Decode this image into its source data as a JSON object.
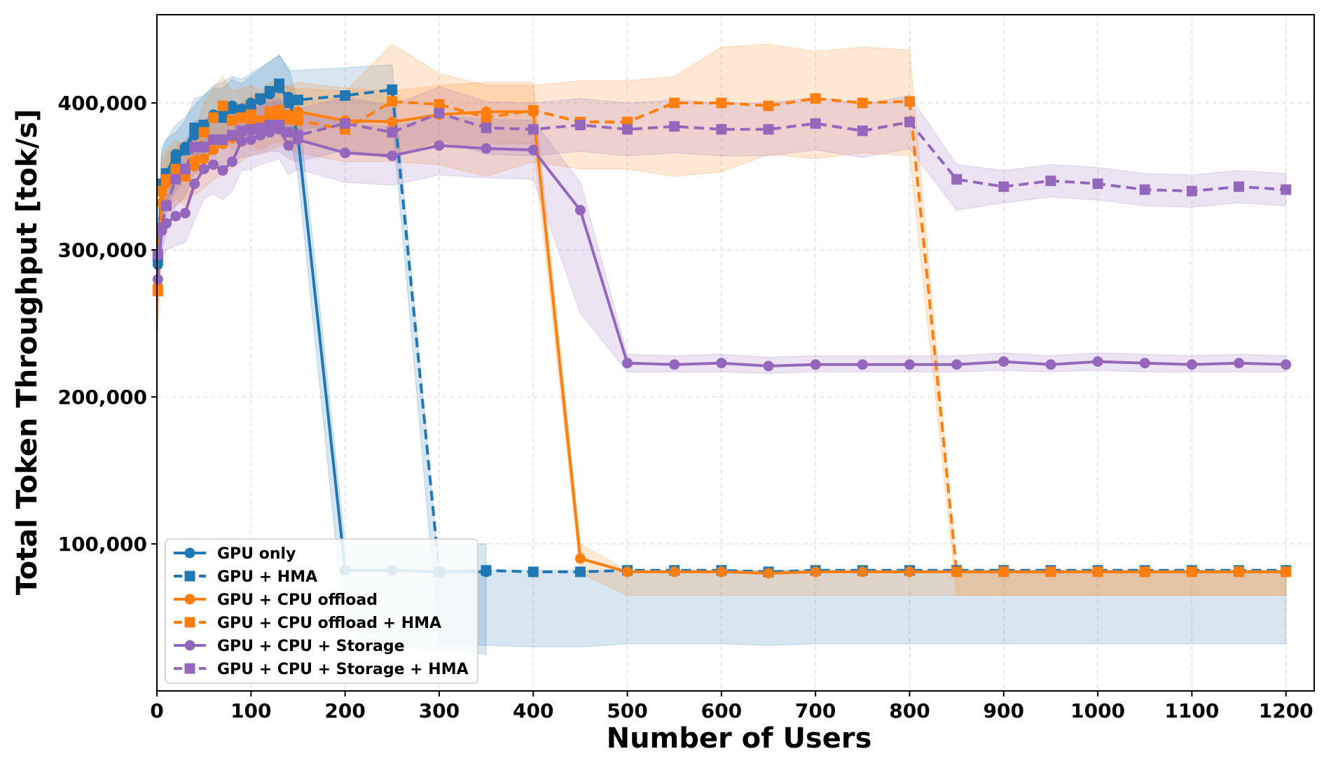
{
  "chart_data": {
    "type": "line",
    "title": "",
    "xlabel": "Number of Users",
    "ylabel": "Total Token Throughput [tok/s]",
    "xlim": [
      0,
      1230
    ],
    "ylim": [
      0,
      460000
    ],
    "x_ticks": [
      0,
      100,
      200,
      300,
      400,
      500,
      600,
      700,
      800,
      900,
      1000,
      1100,
      1200
    ],
    "x_tick_labels": [
      "0",
      "100",
      "200",
      "300",
      "400",
      "500",
      "600",
      "700",
      "800",
      "900",
      "1000",
      "1100",
      "1200"
    ],
    "y_ticks": [
      100000,
      200000,
      300000,
      400000
    ],
    "y_tick_labels": [
      "100,000",
      "200,000",
      "300,000",
      "400,000"
    ],
    "grid": true,
    "legend_position": "bottom-left",
    "series": [
      {
        "name": "GPU only",
        "color": "#1f77b4",
        "line_style": "solid",
        "marker": "circle",
        "x": [
          1,
          5,
          10,
          20,
          30,
          40,
          50,
          60,
          70,
          80,
          90,
          100,
          110,
          120,
          130,
          140,
          150,
          200,
          250,
          300,
          350
        ],
        "y": [
          290000,
          340000,
          352000,
          365000,
          370000,
          378000,
          385000,
          392000,
          394000,
          398000,
          396000,
          400000,
          402000,
          406000,
          410000,
          404000,
          376000,
          82000,
          82000,
          81000,
          81000
        ],
        "band_low": [
          270000,
          310000,
          330000,
          345000,
          350000,
          358000,
          365000,
          372000,
          374000,
          378000,
          376000,
          380000,
          382000,
          386000,
          388000,
          380000,
          350000,
          40000,
          30000,
          28000,
          25000
        ],
        "band_high": [
          310000,
          365000,
          375000,
          385000,
          390000,
          398000,
          405000,
          412000,
          414000,
          418000,
          416000,
          420000,
          424000,
          428000,
          432000,
          424000,
          400000,
          100000,
          100000,
          100000,
          100000
        ]
      },
      {
        "name": "GPU + HMA",
        "color": "#1f77b4",
        "line_style": "dashed",
        "marker": "square",
        "x": [
          1,
          5,
          10,
          20,
          30,
          40,
          50,
          60,
          70,
          80,
          90,
          100,
          110,
          120,
          130,
          140,
          150,
          200,
          250,
          300,
          350,
          400,
          450,
          500,
          550,
          600,
          650,
          700,
          750,
          800,
          850,
          900,
          950,
          1000,
          1050,
          1100,
          1150,
          1200
        ],
        "y": [
          295000,
          345000,
          352000,
          360000,
          368000,
          383000,
          385000,
          390000,
          390000,
          396000,
          393000,
          398000,
          403000,
          408000,
          413000,
          400000,
          402000,
          405000,
          409000,
          81000,
          82000,
          81000,
          81000,
          82000,
          82000,
          82000,
          81000,
          82000,
          82000,
          82000,
          82000,
          82000,
          82000,
          82000,
          82000,
          82000,
          82000,
          82000
        ],
        "band_low": [
          275000,
          320000,
          330000,
          340000,
          348000,
          363000,
          365000,
          370000,
          370000,
          376000,
          373000,
          378000,
          383000,
          388000,
          390000,
          378000,
          382000,
          385000,
          389000,
          32000,
          31000,
          30000,
          30000,
          32000,
          32000,
          32000,
          31000,
          32000,
          32000,
          32000,
          32000,
          32000,
          32000,
          32000,
          32000,
          32000,
          32000,
          32000
        ],
        "band_high": [
          315000,
          370000,
          375000,
          380000,
          388000,
          403000,
          405000,
          410000,
          410000,
          416000,
          413000,
          418000,
          423000,
          428000,
          433000,
          422000,
          422000,
          424000,
          426000,
          82000,
          82000,
          82000,
          82000,
          82000,
          82000,
          82000,
          82000,
          82000,
          82000,
          82000,
          82000,
          82000,
          82000,
          82000,
          82000,
          82000,
          82000,
          82000
        ]
      },
      {
        "name": "GPU + CPU offload",
        "color": "#ff7f0e",
        "line_style": "solid",
        "marker": "circle",
        "x": [
          1,
          5,
          10,
          20,
          30,
          40,
          50,
          60,
          70,
          80,
          90,
          100,
          110,
          120,
          130,
          140,
          150,
          200,
          250,
          300,
          350,
          400,
          450,
          500,
          550,
          600,
          650,
          700,
          750,
          800,
          850,
          900,
          950,
          1000,
          1050,
          1100,
          1150,
          1200
        ],
        "y": [
          275000,
          332000,
          345000,
          350000,
          355000,
          357000,
          362000,
          368000,
          372000,
          376000,
          380000,
          385000,
          386000,
          388000,
          390000,
          392000,
          394000,
          388000,
          387000,
          392000,
          394000,
          394000,
          90000,
          81000,
          81000,
          81000,
          80000,
          81000,
          81000,
          81000,
          81000,
          81000,
          81000,
          81000,
          81000,
          81000,
          81000,
          81000
        ],
        "band_low": [
          245000,
          310000,
          325000,
          330000,
          335000,
          337000,
          342000,
          348000,
          352000,
          356000,
          360000,
          365000,
          366000,
          368000,
          370000,
          372000,
          374000,
          366000,
          365000,
          370000,
          372000,
          372000,
          80000,
          65000,
          65000,
          65000,
          65000,
          65000,
          65000,
          65000,
          65000,
          65000,
          65000,
          65000,
          65000,
          65000,
          65000,
          65000
        ],
        "band_high": [
          305000,
          352000,
          365000,
          370000,
          375000,
          377000,
          382000,
          388000,
          392000,
          396000,
          400000,
          405000,
          406000,
          408000,
          410000,
          412000,
          414000,
          410000,
          408000,
          412000,
          414000,
          414000,
          100000,
          82000,
          82000,
          82000,
          82000,
          82000,
          82000,
          82000,
          82000,
          82000,
          82000,
          82000,
          82000,
          82000,
          82000,
          82000
        ]
      },
      {
        "name": "GPU + CPU offload + HMA",
        "color": "#ff7f0e",
        "line_style": "dashed",
        "marker": "square",
        "x": [
          1,
          5,
          10,
          20,
          30,
          40,
          50,
          60,
          70,
          80,
          90,
          100,
          110,
          120,
          130,
          140,
          150,
          200,
          250,
          300,
          350,
          400,
          450,
          500,
          550,
          600,
          650,
          700,
          750,
          800,
          850,
          900,
          950,
          1000,
          1050,
          1100,
          1150,
          1200
        ],
        "y": [
          272000,
          340000,
          348000,
          355000,
          350000,
          360000,
          380000,
          390000,
          398000,
          388000,
          390000,
          392000,
          388000,
          394000,
          395000,
          389000,
          388000,
          382000,
          401000,
          399000,
          390000,
          395000,
          387000,
          387000,
          400000,
          400000,
          398000,
          403000,
          400000,
          401000,
          81000,
          81000,
          81000,
          81000,
          81000,
          81000,
          81000,
          81000
        ],
        "band_low": [
          245000,
          318000,
          328000,
          335000,
          330000,
          340000,
          360000,
          370000,
          378000,
          368000,
          370000,
          372000,
          368000,
          372000,
          374000,
          368000,
          366000,
          360000,
          360000,
          358000,
          350000,
          360000,
          355000,
          355000,
          350000,
          353000,
          365000,
          362000,
          366000,
          364000,
          65000,
          65000,
          65000,
          65000,
          65000,
          65000,
          65000,
          65000
        ],
        "band_high": [
          300000,
          362000,
          368000,
          375000,
          370000,
          380000,
          400000,
          410000,
          418000,
          408000,
          410000,
          412000,
          408000,
          414000,
          415000,
          410000,
          410000,
          408000,
          440000,
          420000,
          412000,
          412000,
          415000,
          415000,
          418000,
          438000,
          440000,
          435000,
          438000,
          436000,
          82000,
          82000,
          82000,
          82000,
          82000,
          82000,
          82000,
          82000
        ]
      },
      {
        "name": "GPU + CPU + Storage",
        "color": "#9467bd",
        "line_style": "solid",
        "marker": "circle",
        "x": [
          1,
          5,
          10,
          20,
          30,
          40,
          50,
          60,
          70,
          80,
          90,
          100,
          110,
          120,
          130,
          140,
          150,
          200,
          250,
          300,
          350,
          400,
          450,
          500,
          550,
          600,
          650,
          700,
          750,
          800,
          850,
          900,
          950,
          1000,
          1050,
          1100,
          1150,
          1200
        ],
        "y": [
          280000,
          313000,
          318000,
          323000,
          325000,
          345000,
          355000,
          358000,
          354000,
          360000,
          374000,
          375000,
          378000,
          380000,
          382000,
          371000,
          375000,
          366000,
          364000,
          371000,
          369000,
          368000,
          327000,
          223000,
          222000,
          223000,
          221000,
          222000,
          222000,
          222000,
          222000,
          224000,
          222000,
          224000,
          223000,
          222000,
          223000,
          222000
        ],
        "band_low": [
          265000,
          295000,
          300000,
          303000,
          305000,
          320000,
          335000,
          338000,
          334000,
          340000,
          354000,
          355000,
          358000,
          360000,
          362000,
          351000,
          355000,
          346000,
          344000,
          351000,
          349000,
          348000,
          257000,
          217000,
          217000,
          217000,
          216000,
          217000,
          217000,
          217000,
          217000,
          218000,
          217000,
          218000,
          217000,
          217000,
          217000,
          217000
        ],
        "band_high": [
          295000,
          330000,
          336000,
          343000,
          345000,
          365000,
          375000,
          378000,
          374000,
          380000,
          394000,
          395000,
          398000,
          400000,
          402000,
          391000,
          395000,
          386000,
          384000,
          391000,
          389000,
          388000,
          346000,
          229000,
          228000,
          229000,
          227000,
          228000,
          228000,
          228000,
          228000,
          230000,
          228000,
          230000,
          229000,
          228000,
          229000,
          228000
        ]
      },
      {
        "name": "GPU + CPU + Storage + HMA",
        "color": "#9467bd",
        "line_style": "dashed",
        "marker": "square",
        "x": [
          1,
          5,
          10,
          20,
          30,
          40,
          50,
          60,
          70,
          80,
          90,
          100,
          110,
          120,
          130,
          140,
          150,
          200,
          250,
          300,
          350,
          400,
          450,
          500,
          550,
          600,
          650,
          700,
          750,
          800,
          850,
          900,
          950,
          1000,
          1050,
          1100,
          1150,
          1200
        ],
        "y": [
          297000,
          315000,
          330000,
          348000,
          355000,
          370000,
          370000,
          375000,
          375000,
          378000,
          381000,
          382000,
          383000,
          385000,
          385000,
          380000,
          378000,
          386000,
          380000,
          393000,
          383000,
          382000,
          385000,
          382000,
          384000,
          382000,
          382000,
          386000,
          381000,
          387000,
          348000,
          343000,
          347000,
          345000,
          341000,
          340000,
          343000,
          341000
        ],
        "band_low": [
          280000,
          298000,
          312000,
          330000,
          337000,
          352000,
          352000,
          357000,
          357000,
          360000,
          363000,
          364000,
          365000,
          367000,
          367000,
          362000,
          360000,
          368000,
          362000,
          375000,
          365000,
          364000,
          367000,
          364000,
          366000,
          364000,
          364000,
          368000,
          363000,
          369000,
          327000,
          332000,
          336000,
          334000,
          330000,
          329000,
          332000,
          330000
        ],
        "band_high": [
          314000,
          332000,
          348000,
          366000,
          373000,
          388000,
          388000,
          393000,
          393000,
          396000,
          399000,
          400000,
          401000,
          403000,
          403000,
          398000,
          396000,
          404000,
          398000,
          411000,
          401000,
          400000,
          403000,
          400000,
          402000,
          400000,
          400000,
          404000,
          399000,
          405000,
          358000,
          354000,
          358000,
          356000,
          352000,
          351000,
          354000,
          352000
        ]
      }
    ]
  }
}
